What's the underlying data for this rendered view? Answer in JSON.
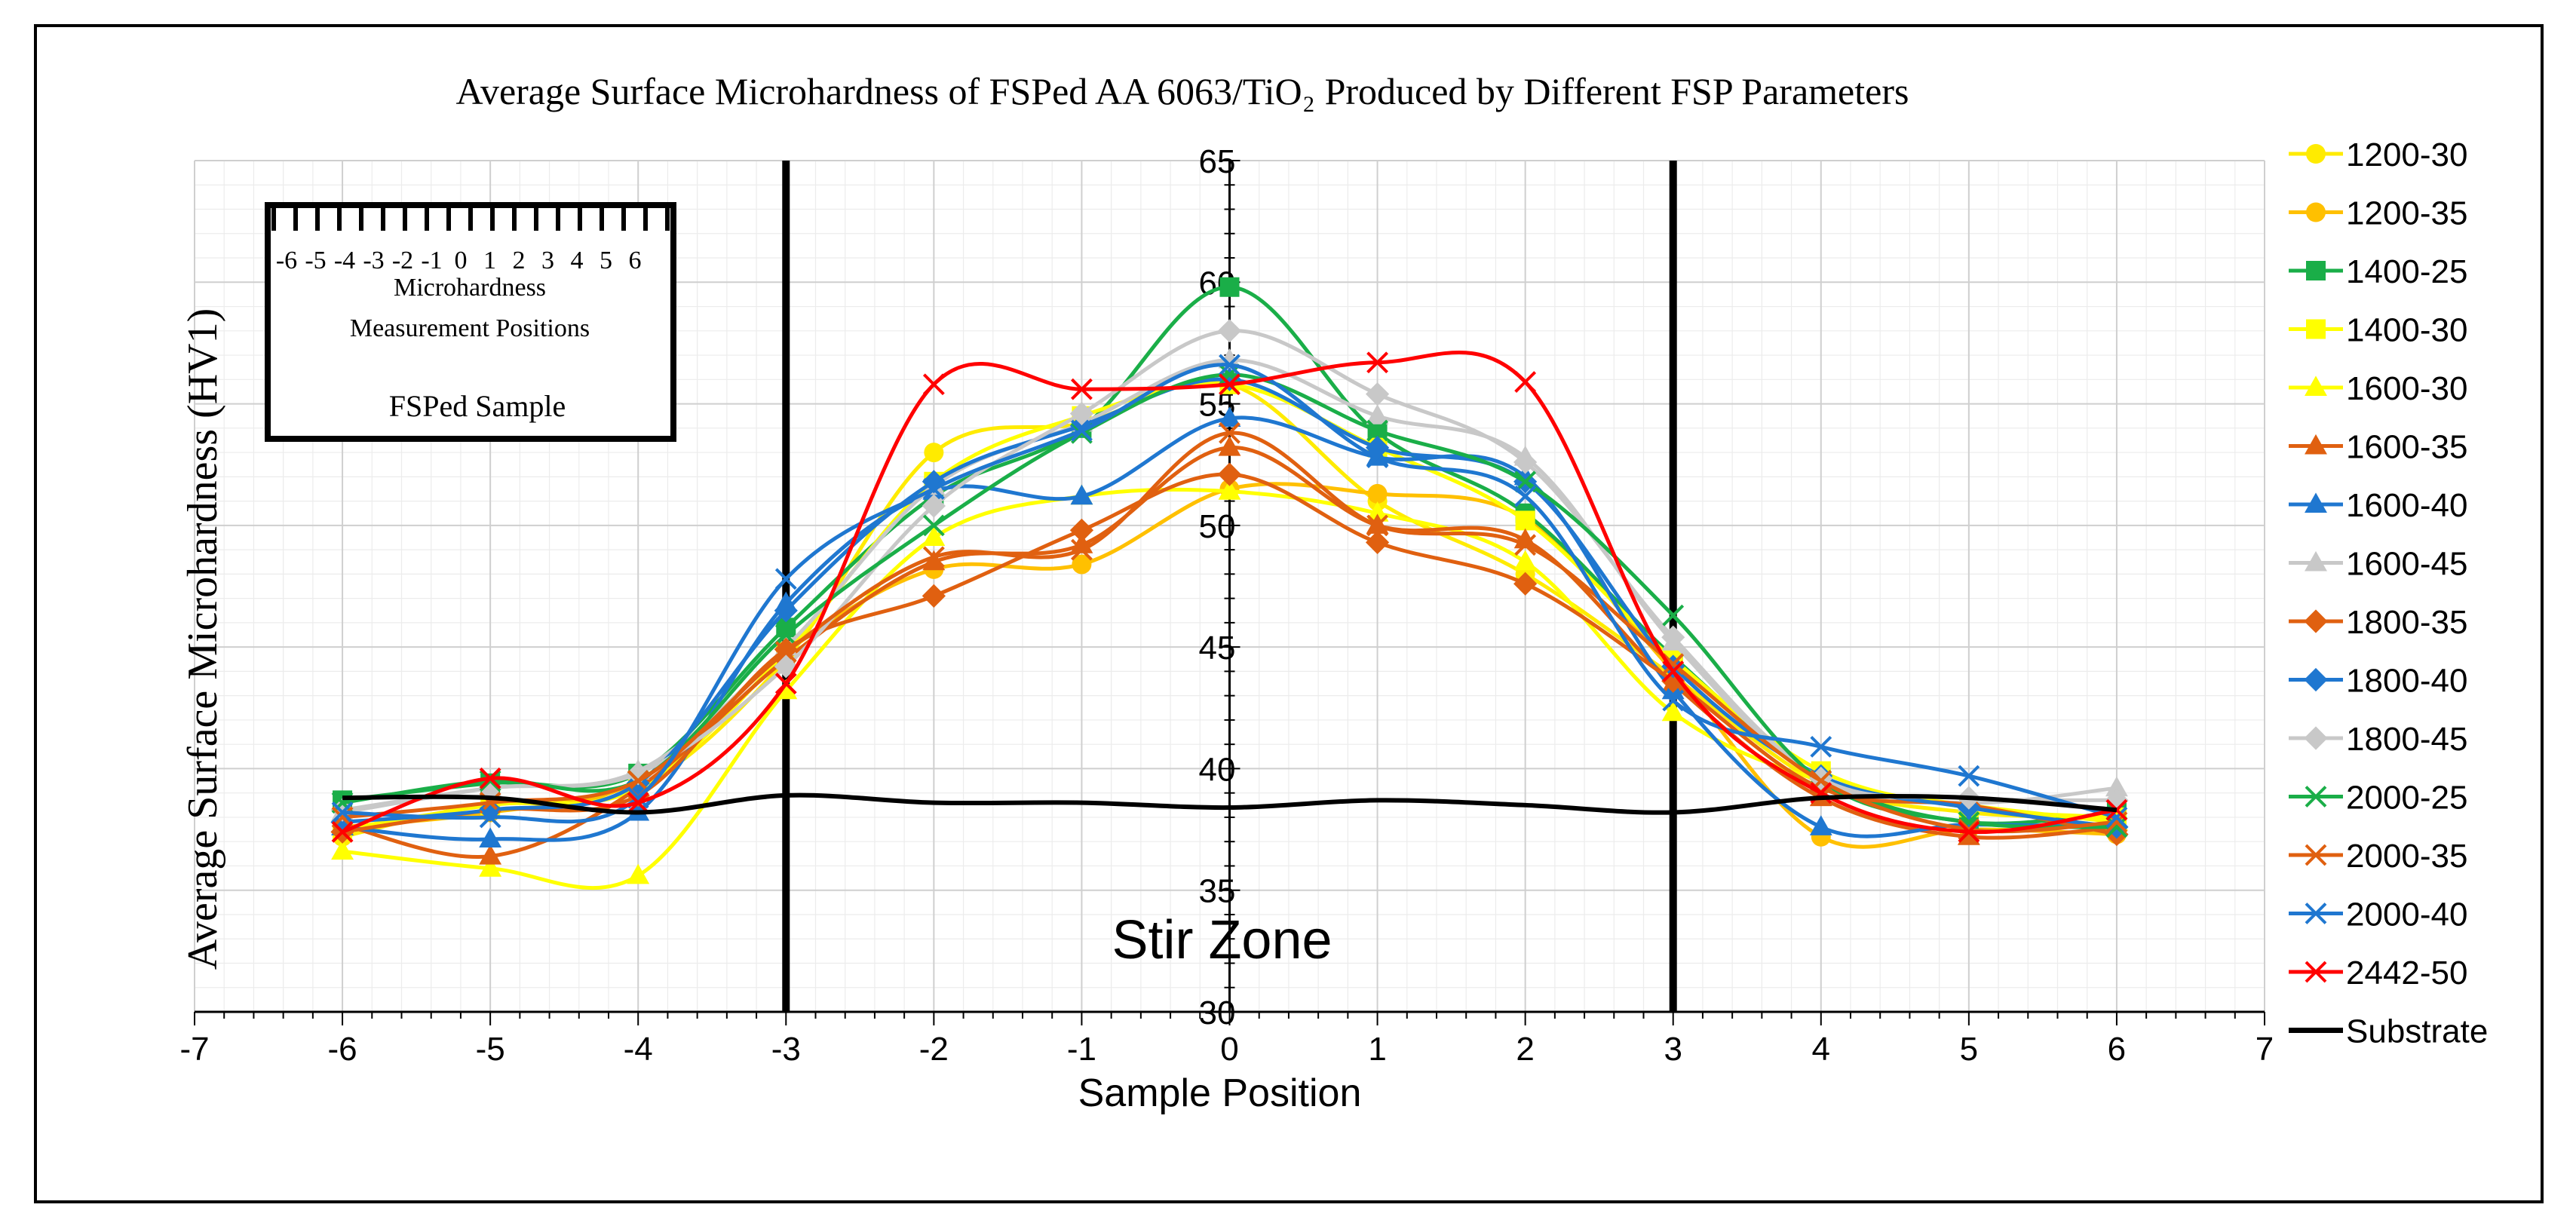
{
  "chart_data": {
    "type": "line",
    "title": "Average Surface Microhardness of FSPed AA 6063/TiO₂ Produced by Different FSP Parameters",
    "xlabel": "Sample Position",
    "ylabel": "Average Surface Microhardness (HV1)",
    "xlim": [
      -7,
      7
    ],
    "ylim": [
      30,
      65
    ],
    "xticks": [
      -7,
      -6,
      -5,
      -4,
      -3,
      -2,
      -1,
      0,
      1,
      2,
      3,
      4,
      5,
      6,
      7
    ],
    "yticks": [
      30,
      35,
      40,
      45,
      50,
      55,
      60,
      65
    ],
    "grid": true,
    "legend_position": "right",
    "x": [
      -6,
      -5,
      -4,
      -3,
      -2,
      -1,
      0,
      1,
      2,
      3,
      4,
      5,
      6
    ],
    "zone_boundaries": [
      -3,
      3
    ],
    "zone_label": "Stir Zone",
    "inset": {
      "scale_labels": [
        "-6",
        "-5",
        "-4",
        "-3",
        "-2",
        "-1",
        "0",
        "1",
        "2",
        "3",
        "4",
        "5",
        "6"
      ],
      "line1": "Microhardness",
      "line2": "Measurement Positions",
      "sample_label": "FSPed Sample"
    },
    "series": [
      {
        "name": "1200-30",
        "color": "#FFEB00",
        "marker": "circle",
        "values": [
          37.2,
          38.6,
          39.2,
          44.5,
          53.0,
          54.2,
          55.8,
          51.0,
          48.0,
          43.8,
          39.4,
          38.2,
          38.0
        ]
      },
      {
        "name": "1200-35",
        "color": "#FFC000",
        "marker": "circle",
        "values": [
          37.6,
          38.2,
          39.5,
          44.8,
          48.2,
          48.4,
          51.5,
          51.3,
          50.3,
          44.0,
          37.2,
          37.5,
          37.3
        ]
      },
      {
        "name": "1400-25",
        "color": "#1AAE48",
        "marker": "square",
        "values": [
          38.7,
          39.4,
          39.8,
          45.8,
          51.2,
          54.0,
          59.8,
          53.8,
          50.5,
          44.6,
          39.6,
          37.8,
          38.2
        ]
      },
      {
        "name": "1400-30",
        "color": "#FFFF00",
        "marker": "square",
        "values": [
          37.5,
          38.5,
          39.2,
          44.8,
          51.8,
          54.5,
          55.8,
          53.2,
          50.2,
          44.5,
          39.9,
          38.4,
          38.0
        ]
      },
      {
        "name": "1600-30",
        "color": "#FFFF00",
        "marker": "triangle",
        "values": [
          36.6,
          35.9,
          35.6,
          43.2,
          49.5,
          51.2,
          51.4,
          50.5,
          48.5,
          42.3,
          39.5,
          38.5,
          37.8
        ]
      },
      {
        "name": "1600-35",
        "color": "#E06010",
        "marker": "triangle",
        "values": [
          37.7,
          36.4,
          39.2,
          44.5,
          48.5,
          49.2,
          53.2,
          50.0,
          49.4,
          43.5,
          38.8,
          37.2,
          37.6
        ]
      },
      {
        "name": "1600-40",
        "color": "#1F77D0",
        "marker": "triangle",
        "values": [
          37.6,
          37.1,
          38.2,
          46.8,
          51.4,
          51.2,
          54.4,
          52.8,
          52.0,
          43.2,
          37.6,
          37.7,
          37.6
        ]
      },
      {
        "name": "1600-45",
        "color": "#C8C8C8",
        "marker": "triangle",
        "values": [
          38.2,
          39.2,
          39.9,
          45.0,
          51.6,
          54.2,
          56.8,
          54.5,
          52.8,
          45.2,
          39.5,
          38.6,
          39.2
        ]
      },
      {
        "name": "1800-35",
        "color": "#E06010",
        "marker": "diamond",
        "values": [
          37.4,
          38.3,
          38.9,
          44.9,
          47.1,
          49.8,
          52.1,
          49.3,
          47.6,
          43.6,
          39.2,
          38.5,
          37.3
        ]
      },
      {
        "name": "1800-40",
        "color": "#1F77D0",
        "marker": "diamond",
        "values": [
          37.8,
          38.3,
          39.4,
          46.5,
          51.8,
          54.1,
          56.0,
          53.2,
          51.8,
          44.2,
          39.7,
          38.4,
          37.6
        ]
      },
      {
        "name": "1800-45",
        "color": "#C8C8C8",
        "marker": "diamond",
        "values": [
          38.3,
          39.2,
          39.8,
          44.2,
          50.8,
          54.6,
          58.0,
          55.4,
          52.6,
          45.4,
          39.6,
          38.8,
          38.7
        ]
      },
      {
        "name": "2000-25",
        "color": "#1AAE48",
        "marker": "x",
        "values": [
          38.6,
          39.5,
          39.5,
          45.5,
          50.0,
          53.8,
          56.2,
          53.9,
          51.8,
          46.3,
          39.5,
          37.8,
          37.6
        ]
      },
      {
        "name": "2000-35",
        "color": "#E06010",
        "marker": "x",
        "values": [
          38.0,
          38.6,
          39.5,
          44.8,
          48.7,
          49.0,
          53.8,
          50.0,
          49.2,
          44.3,
          39.5,
          37.5,
          37.8
        ]
      },
      {
        "name": "2000-40",
        "color": "#1F77D0",
        "marker": "x",
        "values": [
          38.2,
          38.0,
          38.8,
          47.8,
          51.5,
          53.9,
          56.6,
          52.8,
          51.2,
          42.8,
          40.9,
          39.7,
          38.0
        ]
      },
      {
        "name": "2442-50",
        "color": "#FF0000",
        "marker": "x",
        "values": [
          37.4,
          39.6,
          38.6,
          43.5,
          55.8,
          55.6,
          55.8,
          56.7,
          55.9,
          44.0,
          39.0,
          37.4,
          38.3
        ]
      },
      {
        "name": "Substrate",
        "color": "#000000",
        "marker": "none",
        "values": [
          38.8,
          38.8,
          38.2,
          38.9,
          38.6,
          38.6,
          38.4,
          38.7,
          38.5,
          38.2,
          38.8,
          38.8,
          38.3
        ]
      }
    ]
  }
}
